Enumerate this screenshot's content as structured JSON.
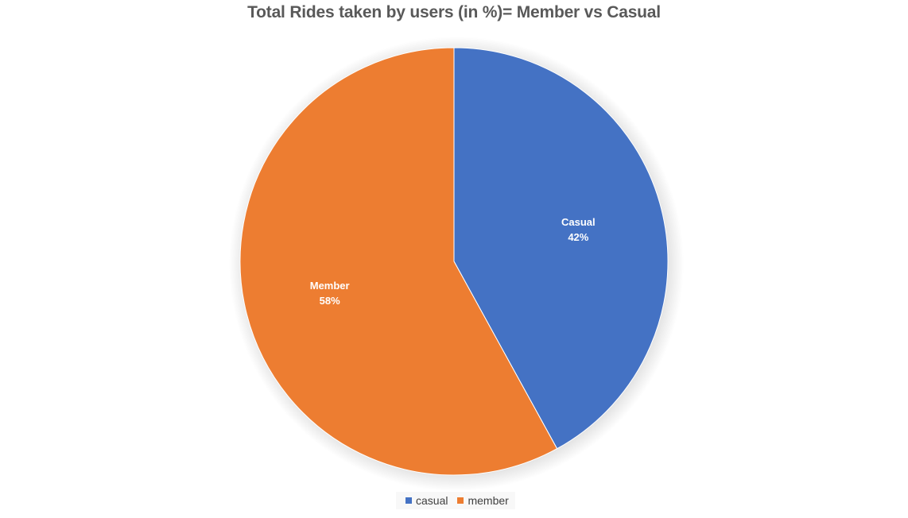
{
  "chart_data": {
    "type": "pie",
    "title": "Total Rides taken by users (in %)= Member vs Casual",
    "categories": [
      "Casual",
      "Member"
    ],
    "values": [
      42,
      58
    ],
    "data_labels": [
      {
        "name": "Casual",
        "value": "42%"
      },
      {
        "name": "Member",
        "value": "58%"
      }
    ],
    "colors": [
      "#4472C4",
      "#ED7D31"
    ],
    "legend": {
      "placement": "bottom",
      "items": [
        {
          "label": "casual",
          "color": "#4472C4"
        },
        {
          "label": "member",
          "color": "#ED7D31"
        }
      ]
    }
  }
}
